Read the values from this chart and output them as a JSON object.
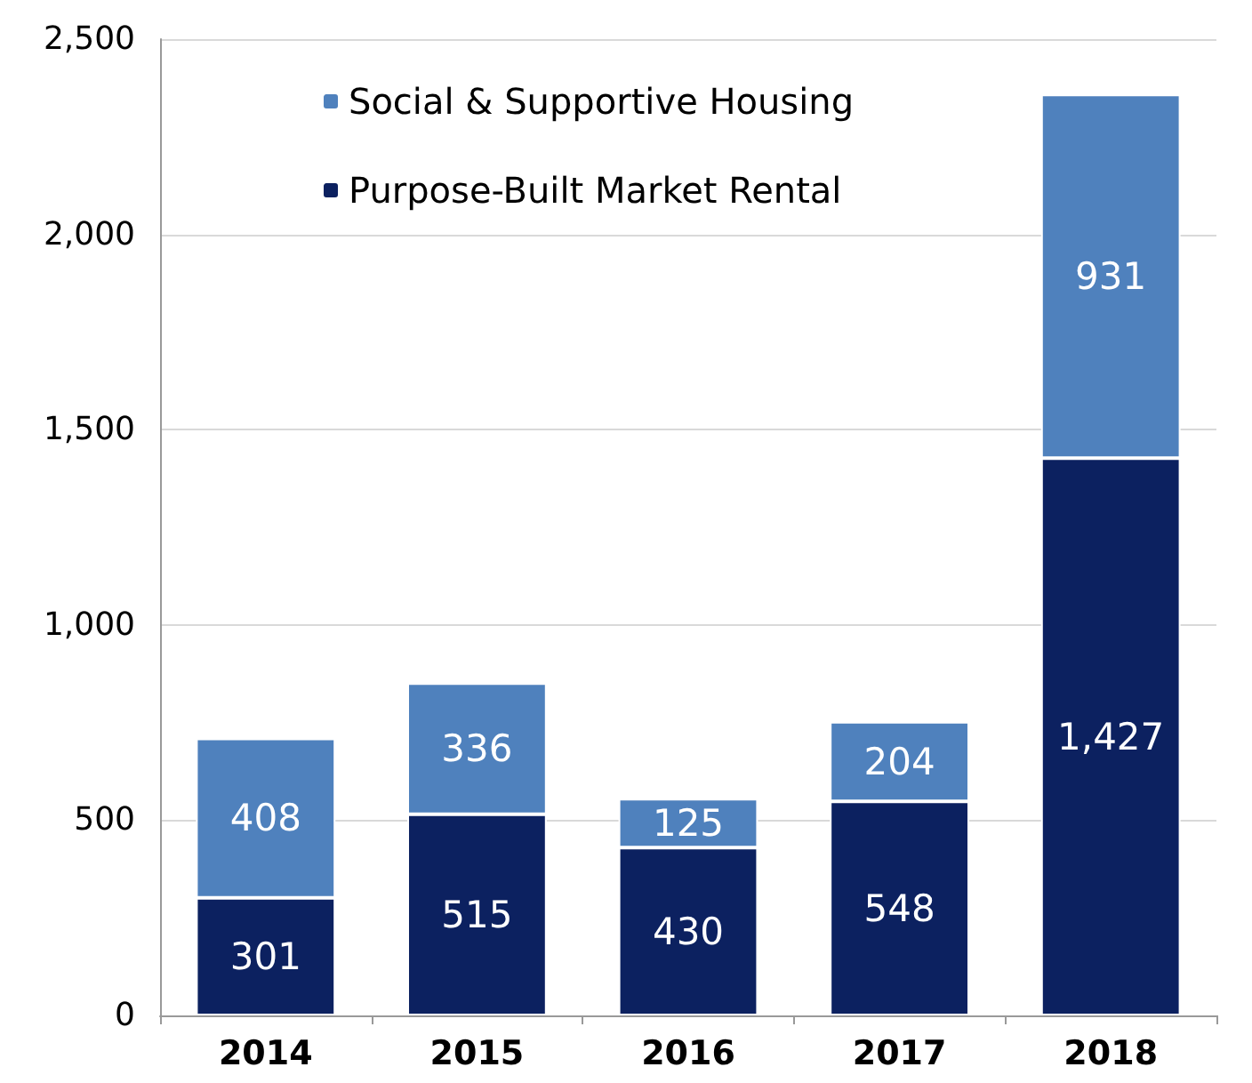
{
  "chart_data": {
    "type": "bar",
    "stacked": true,
    "categories": [
      "2014",
      "2015",
      "2016",
      "2017",
      "2018"
    ],
    "series": [
      {
        "name": "Purpose-Built Market Rental",
        "color": "#0c2160",
        "values": [
          301,
          515,
          430,
          548,
          1427
        ],
        "value_labels": [
          "301",
          "515",
          "430",
          "548",
          "1,427"
        ]
      },
      {
        "name": "Social & Supportive Housing",
        "color": "#4f81bd",
        "values": [
          408,
          336,
          125,
          204,
          931
        ],
        "value_labels": [
          "408",
          "336",
          "125",
          "204",
          "931"
        ]
      }
    ],
    "ylim": [
      0,
      2500
    ],
    "yticks": [
      0,
      500,
      {
        "value": 1000,
        "label": "1,000"
      },
      {
        "value": 1500,
        "label": "1,500"
      },
      {
        "value": 2000,
        "label": "2,000"
      },
      {
        "value": 2500,
        "label": "2,500"
      }
    ],
    "grid": "y",
    "legend": "top left"
  }
}
